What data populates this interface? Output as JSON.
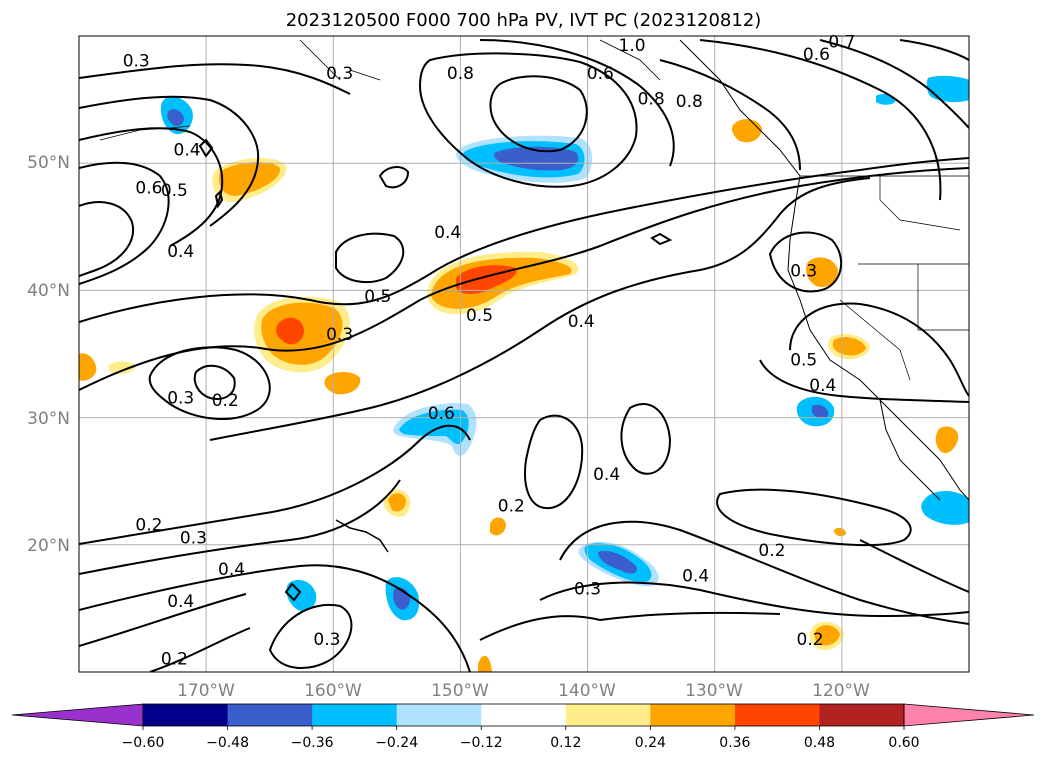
{
  "title": "2023120500 F000 700 hPa PV, IVT PC (2023120812)",
  "map": {
    "lat_ticks": [
      "50°N",
      "40°N",
      "30°N",
      "20°N"
    ],
    "lon_ticks": [
      "170°W",
      "160°W",
      "150°W",
      "140°W",
      "130°W",
      "120°W"
    ],
    "contour_labels": [
      {
        "text": "0.3",
        "lon": -175.5,
        "lat": 58.0
      },
      {
        "text": "0.3",
        "lon": -159.5,
        "lat": 57.0
      },
      {
        "text": "0.8",
        "lon": -150.0,
        "lat": 57.0
      },
      {
        "text": "0.6",
        "lon": -139.0,
        "lat": 57.0
      },
      {
        "text": "1.0",
        "lon": -136.5,
        "lat": 59.2
      },
      {
        "text": "0.6",
        "lon": -122.0,
        "lat": 58.5
      },
      {
        "text": "0.7",
        "lon": -120.0,
        "lat": 59.5
      },
      {
        "text": "0.8",
        "lon": -135.0,
        "lat": 55.0
      },
      {
        "text": "0.8",
        "lon": -132.0,
        "lat": 54.8
      },
      {
        "text": "0.4",
        "lon": -171.5,
        "lat": 51.0
      },
      {
        "text": "0.6",
        "lon": -174.5,
        "lat": 48.0
      },
      {
        "text": "0.5",
        "lon": -172.5,
        "lat": 47.8
      },
      {
        "text": "0.4",
        "lon": -172.0,
        "lat": 43.0
      },
      {
        "text": "0.4",
        "lon": -151.0,
        "lat": 44.5
      },
      {
        "text": "0.5",
        "lon": -156.5,
        "lat": 39.5
      },
      {
        "text": "0.5",
        "lon": -148.5,
        "lat": 38.0
      },
      {
        "text": "0.3",
        "lon": -159.5,
        "lat": 36.5
      },
      {
        "text": "0.4",
        "lon": -140.5,
        "lat": 37.5
      },
      {
        "text": "0.3",
        "lon": -123.0,
        "lat": 41.5
      },
      {
        "text": "0.5",
        "lon": -123.0,
        "lat": 34.5
      },
      {
        "text": "0.4",
        "lon": -121.5,
        "lat": 32.5
      },
      {
        "text": "0.3",
        "lon": -172.0,
        "lat": 31.5
      },
      {
        "text": "0.2",
        "lon": -168.5,
        "lat": 31.3
      },
      {
        "text": "0.6",
        "lon": -151.5,
        "lat": 30.3
      },
      {
        "text": "0.4",
        "lon": -138.5,
        "lat": 25.5
      },
      {
        "text": "0.2",
        "lon": -146.0,
        "lat": 23.0
      },
      {
        "text": "0.2",
        "lon": -174.5,
        "lat": 21.5
      },
      {
        "text": "0.3",
        "lon": -171.0,
        "lat": 20.5
      },
      {
        "text": "0.4",
        "lon": -168.0,
        "lat": 18.0
      },
      {
        "text": "0.4",
        "lon": -172.0,
        "lat": 15.5
      },
      {
        "text": "0.3",
        "lon": -160.5,
        "lat": 12.5
      },
      {
        "text": "0.2",
        "lon": -172.5,
        "lat": 11.0
      },
      {
        "text": "0.3",
        "lon": -140.0,
        "lat": 16.5
      },
      {
        "text": "0.4",
        "lon": -131.5,
        "lat": 17.5
      },
      {
        "text": "0.2",
        "lon": -125.5,
        "lat": 19.5
      },
      {
        "text": "0.2",
        "lon": -122.5,
        "lat": 12.5
      }
    ]
  },
  "colorbar": {
    "ticks": [
      "−0.60",
      "−0.48",
      "−0.36",
      "−0.24",
      "−0.12",
      "0.12",
      "0.24",
      "0.36",
      "0.48",
      "0.60"
    ],
    "bounds": [
      -0.6,
      -0.48,
      -0.36,
      -0.24,
      -0.12,
      0.12,
      0.24,
      0.36,
      0.48,
      0.6
    ],
    "colors": [
      "#9932cc",
      "#00008b",
      "#3a5fcd",
      "#00bfff",
      "#b0e2ff",
      "#ffffff",
      "#ffec8b",
      "#ffa500",
      "#ff4500",
      "#b22222",
      "#ff82ab"
    ]
  }
}
